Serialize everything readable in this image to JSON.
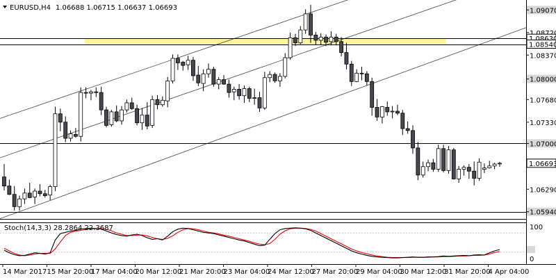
{
  "header": {
    "symbol": "EURUSD,H4",
    "ohlc": "1.06688 1.06715 1.06637 1.06693"
  },
  "price_axis": {
    "ticks": [
      "1.09070",
      "1.08720",
      "1.08370",
      "1.08000",
      "1.07680",
      "1.07330",
      "1.07000",
      "1.06290",
      "1.05940"
    ],
    "shaded_ticks": [
      "1.09070",
      "1.08000",
      "1.07000",
      "1.05940"
    ],
    "highlight_tags": [
      {
        "label": "1.08630",
        "price": 1.0863
      },
      {
        "label": "1.08540",
        "price": 1.0854
      },
      {
        "label": "1.06693",
        "price": 1.06693
      }
    ]
  },
  "levels": {
    "resistance_zone": {
      "low": 1.0854,
      "high": 1.0863
    },
    "horizontal_lines": [
      1.0863,
      1.0854,
      1.07,
      1.0594
    ]
  },
  "channel_lines": [
    {
      "from": {
        "bar": 0,
        "price": 1.0741
      },
      "to": {
        "bar": 70,
        "price": 1.093
      }
    },
    {
      "from": {
        "bar": 0,
        "price": 1.068
      },
      "to": {
        "bar": 70,
        "price": 1.0872
      }
    },
    {
      "from": {
        "bar": 5,
        "price": 1.06
      },
      "to": {
        "bar": 70,
        "price": 1.0787
      }
    }
  ],
  "indicator": {
    "label": "Stoch(14,3,3) 28.2864 22.3687",
    "scale_top": "100",
    "scale_bottom": "0",
    "k_color": "#000000",
    "d_color": "#ff0000"
  },
  "time_axis": [
    "14 Mar 2017",
    "15 Mar 20:00",
    "17 Mar 04:00",
    "20 Mar 12:00",
    "21 Mar 20:00",
    "23 Mar 04:00",
    "24 Mar 12:00",
    "27 Mar 20:00",
    "29 Mar 04:00",
    "30 Mar 12:00",
    "31 Mar 20:00",
    "4 Apr 04:00"
  ],
  "colors": {
    "background": "#ffffff",
    "candle_bull": "#ffffff",
    "candle_bear": "#45494f",
    "zone_fill": "#fff3a0",
    "axis_shade": "#d8d8d8",
    "current_tag": "#ffffff"
  },
  "chart_data": {
    "type": "candlestick",
    "symbol": "EURUSD",
    "timeframe": "H4",
    "ylim": [
      1.0584,
      1.0916
    ],
    "candles": [
      [
        1.0648,
        1.0668,
        1.0627,
        1.0634
      ],
      [
        1.0634,
        1.0644,
        1.062,
        1.0621
      ],
      [
        1.0621,
        1.0634,
        1.0596,
        1.0602
      ],
      [
        1.0602,
        1.0619,
        1.0596,
        1.0614
      ],
      [
        1.0614,
        1.063,
        1.0606,
        1.0623
      ],
      [
        1.0623,
        1.0639,
        1.0615,
        1.0616
      ],
      [
        1.0617,
        1.063,
        1.0606,
        1.0626
      ],
      [
        1.0626,
        1.0637,
        1.0618,
        1.0622
      ],
      [
        1.0622,
        1.0628,
        1.0616,
        1.0619
      ],
      [
        1.062,
        1.0636,
        1.0612,
        1.0633
      ],
      [
        1.0633,
        1.0757,
        1.0626,
        1.0746
      ],
      [
        1.0746,
        1.0754,
        1.0719,
        1.0733
      ],
      [
        1.0733,
        1.0742,
        1.0702,
        1.0708
      ],
      [
        1.0708,
        1.072,
        1.0703,
        1.0715
      ],
      [
        1.0714,
        1.0724,
        1.0709,
        1.0711
      ],
      [
        1.0711,
        1.0787,
        1.0703,
        1.0779
      ],
      [
        1.0779,
        1.0787,
        1.077,
        1.0778
      ],
      [
        1.0778,
        1.0783,
        1.0767,
        1.078
      ],
      [
        1.078,
        1.0787,
        1.0772,
        1.0779
      ],
      [
        1.0779,
        1.0788,
        1.0744,
        1.0752
      ],
      [
        1.0752,
        1.0757,
        1.0725,
        1.0728
      ],
      [
        1.0729,
        1.0752,
        1.0726,
        1.0749
      ],
      [
        1.0749,
        1.0759,
        1.0733,
        1.0735
      ],
      [
        1.0735,
        1.0758,
        1.0729,
        1.0752
      ],
      [
        1.0752,
        1.0768,
        1.0748,
        1.0763
      ],
      [
        1.0763,
        1.0771,
        1.0752,
        1.0754
      ],
      [
        1.0754,
        1.076,
        1.0728,
        1.0732
      ],
      [
        1.0732,
        1.0755,
        1.0721,
        1.0744
      ],
      [
        1.0744,
        1.0764,
        1.0722,
        1.0727
      ],
      [
        1.0728,
        1.0774,
        1.0724,
        1.0768
      ],
      [
        1.0768,
        1.0775,
        1.0753,
        1.076
      ],
      [
        1.076,
        1.0773,
        1.0757,
        1.0767
      ],
      [
        1.0766,
        1.0803,
        1.0756,
        1.0797
      ],
      [
        1.0797,
        1.0838,
        1.0793,
        1.0832
      ],
      [
        1.0832,
        1.0838,
        1.0814,
        1.0825
      ],
      [
        1.0826,
        1.0828,
        1.0813,
        1.0821
      ],
      [
        1.0822,
        1.0836,
        1.0814,
        1.0829
      ],
      [
        1.0829,
        1.0834,
        1.0797,
        1.0805
      ],
      [
        1.0806,
        1.082,
        1.0789,
        1.0794
      ],
      [
        1.0793,
        1.0815,
        1.0781,
        1.0808
      ],
      [
        1.0808,
        1.0824,
        1.0802,
        1.0815
      ],
      [
        1.0815,
        1.0819,
        1.0788,
        1.0792
      ],
      [
        1.0792,
        1.0803,
        1.0784,
        1.0799
      ],
      [
        1.0799,
        1.0806,
        1.0791,
        1.0792
      ],
      [
        1.0792,
        1.0799,
        1.0771,
        1.0779
      ],
      [
        1.078,
        1.0788,
        1.0767,
        1.0784
      ],
      [
        1.0784,
        1.0792,
        1.0768,
        1.0774
      ],
      [
        1.0774,
        1.079,
        1.0763,
        1.0785
      ],
      [
        1.0785,
        1.0788,
        1.0764,
        1.077
      ],
      [
        1.077,
        1.0785,
        1.076,
        1.0771
      ],
      [
        1.0771,
        1.078,
        1.0749,
        1.0755
      ],
      [
        1.0755,
        1.0811,
        1.0752,
        1.0802
      ],
      [
        1.0802,
        1.0812,
        1.0795,
        1.0807
      ],
      [
        1.0807,
        1.081,
        1.0794,
        1.0797
      ],
      [
        1.0797,
        1.0809,
        1.0788,
        1.0804
      ],
      [
        1.0804,
        1.084,
        1.0801,
        1.0833
      ],
      [
        1.0833,
        1.0872,
        1.083,
        1.0864
      ],
      [
        1.0864,
        1.087,
        1.0851,
        1.0856
      ],
      [
        1.0856,
        1.0882,
        1.0854,
        1.0876
      ],
      [
        1.0876,
        1.0908,
        1.087,
        1.0901
      ],
      [
        1.0901,
        1.0915,
        1.0856,
        1.0868
      ],
      [
        1.0868,
        1.0873,
        1.0853,
        1.086
      ],
      [
        1.086,
        1.0871,
        1.0853,
        1.0865
      ],
      [
        1.0865,
        1.0869,
        1.0851,
        1.0857
      ],
      [
        1.0858,
        1.0874,
        1.0852,
        1.0865
      ],
      [
        1.0865,
        1.087,
        1.0852,
        1.0858
      ],
      [
        1.0858,
        1.0865,
        1.0835,
        1.0841
      ],
      [
        1.0841,
        1.0856,
        1.0815,
        1.0823
      ],
      [
        1.0823,
        1.0828,
        1.0789,
        1.0796
      ],
      [
        1.0796,
        1.0815,
        1.0795,
        1.0809
      ],
      [
        1.0809,
        1.0819,
        1.0798,
        1.0808
      ],
      [
        1.0808,
        1.0812,
        1.079,
        1.0796
      ],
      [
        1.0796,
        1.0802,
        1.0743,
        1.0756
      ],
      [
        1.0756,
        1.0769,
        1.0735,
        1.0741
      ],
      [
        1.0741,
        1.0758,
        1.0731,
        1.0757
      ],
      [
        1.0756,
        1.0765,
        1.0743,
        1.0749
      ],
      [
        1.0749,
        1.0758,
        1.0739,
        1.075
      ],
      [
        1.075,
        1.076,
        1.0744,
        1.0747
      ],
      [
        1.0747,
        1.0752,
        1.0713,
        1.0723
      ],
      [
        1.0723,
        1.0734,
        1.0715,
        1.072
      ],
      [
        1.072,
        1.0728,
        1.0684,
        1.0693
      ],
      [
        1.0693,
        1.0702,
        1.0643,
        1.0651
      ],
      [
        1.0651,
        1.0672,
        1.0647,
        1.0664
      ],
      [
        1.0664,
        1.0675,
        1.0657,
        1.067
      ],
      [
        1.067,
        1.0676,
        1.0656,
        1.066
      ],
      [
        1.066,
        1.0698,
        1.0656,
        1.0692
      ],
      [
        1.0692,
        1.0698,
        1.0655,
        1.0658
      ],
      [
        1.0658,
        1.0696,
        1.0653,
        1.069
      ],
      [
        1.069,
        1.0693,
        1.0644,
        1.0645
      ],
      [
        1.0645,
        1.0665,
        1.0639,
        1.066
      ],
      [
        1.066,
        1.0666,
        1.065,
        1.0663
      ],
      [
        1.0663,
        1.0668,
        1.0645,
        1.0657
      ],
      [
        1.0657,
        1.0672,
        1.0635,
        1.0646
      ],
      [
        1.0646,
        1.0677,
        1.0642,
        1.0671
      ],
      [
        1.066,
        1.0669,
        1.0654,
        1.0662
      ],
      [
        1.0662,
        1.0673,
        1.0661,
        1.0665
      ],
      [
        1.0665,
        1.067,
        1.066,
        1.0668
      ],
      [
        1.06688,
        1.06715,
        1.06637,
        1.06693
      ]
    ],
    "stochastic": {
      "k": [
        26,
        18,
        12,
        9,
        10,
        14,
        18,
        16,
        14,
        18,
        58,
        78,
        82,
        86,
        88,
        92,
        94,
        95,
        94,
        92,
        86,
        80,
        75,
        72,
        70,
        74,
        76,
        72,
        65,
        60,
        62,
        58,
        70,
        84,
        92,
        95,
        94,
        90,
        86,
        82,
        80,
        78,
        74,
        70,
        66,
        62,
        58,
        55,
        50,
        45,
        40,
        42,
        60,
        78,
        90,
        94,
        95,
        96,
        95,
        93,
        88,
        80,
        72,
        64,
        56,
        48,
        40,
        32,
        24,
        18,
        14,
        10,
        7,
        5,
        4,
        3,
        2,
        2,
        3,
        4,
        5,
        4,
        4,
        5,
        5,
        6,
        8,
        7,
        8,
        9,
        10,
        9,
        11,
        12,
        11,
        18,
        24,
        28
      ],
      "d": [
        32,
        24,
        16,
        11,
        9,
        11,
        14,
        16,
        16,
        16,
        30,
        52,
        72,
        82,
        86,
        88,
        91,
        93,
        94,
        94,
        91,
        87,
        80,
        76,
        72,
        72,
        73,
        74,
        71,
        66,
        62,
        60,
        63,
        71,
        82,
        90,
        94,
        93,
        90,
        86,
        82,
        80,
        77,
        73,
        70,
        66,
        62,
        58,
        54,
        49,
        45,
        43,
        47,
        60,
        76,
        87,
        93,
        95,
        95,
        94,
        91,
        86,
        78,
        70,
        62,
        54,
        46,
        38,
        30,
        24,
        19,
        15,
        11,
        8,
        6,
        4,
        3,
        3,
        3,
        3,
        4,
        4,
        4,
        4,
        5,
        5,
        6,
        6,
        7,
        8,
        8,
        9,
        10,
        10,
        11,
        14,
        19,
        22
      ]
    }
  }
}
